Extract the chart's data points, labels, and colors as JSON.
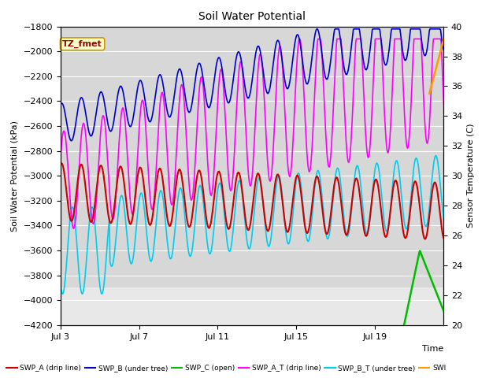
{
  "title": "Soil Water Potential",
  "xlabel": "Time",
  "ylabel_left": "Soil Water Potential (kPa)",
  "ylabel_right": "Sensor Temperature (C)",
  "ylim_left": [
    -4200,
    -1800
  ],
  "ylim_right": [
    20,
    40
  ],
  "yticks_left": [
    -4200,
    -4000,
    -3800,
    -3600,
    -3400,
    -3200,
    -3000,
    -2800,
    -2600,
    -2400,
    -2200,
    -2000,
    -1800
  ],
  "yticks_right": [
    20,
    22,
    24,
    26,
    28,
    30,
    32,
    34,
    36,
    38,
    40
  ],
  "xtick_positions": [
    0,
    4,
    8,
    12,
    16
  ],
  "xtick_labels": [
    "Jul 3",
    "Jul 7",
    "Jul 11",
    "Jul 15",
    "Jul 19"
  ],
  "xlim": [
    0,
    19.5
  ],
  "annotation": "TZ_fmet",
  "annotation_color": "#990000",
  "annotation_bg": "#ffffcc",
  "annotation_border": "#cc9900",
  "fig_bg": "#ffffff",
  "plot_bg": "#e8e8e8",
  "inner_bg": "#d4d4d4",
  "grid_color": "#ffffff",
  "series": {
    "SWP_A": {
      "color": "#cc0000",
      "label": "SWP_A (drip line)"
    },
    "SWP_B": {
      "color": "#0000cc",
      "label": "SWP_B (under tree)"
    },
    "SWP_C": {
      "color": "#00bb00",
      "label": "SWP_C (open)"
    },
    "SWP_A_T": {
      "color": "#ff00ff",
      "label": "SWP_A_T (drip line)"
    },
    "SWP_B_T": {
      "color": "#00ccee",
      "label": "SWP_B_T (under tree)"
    },
    "SWP_extra": {
      "color": "#ff9900",
      "label": "SWI"
    }
  }
}
